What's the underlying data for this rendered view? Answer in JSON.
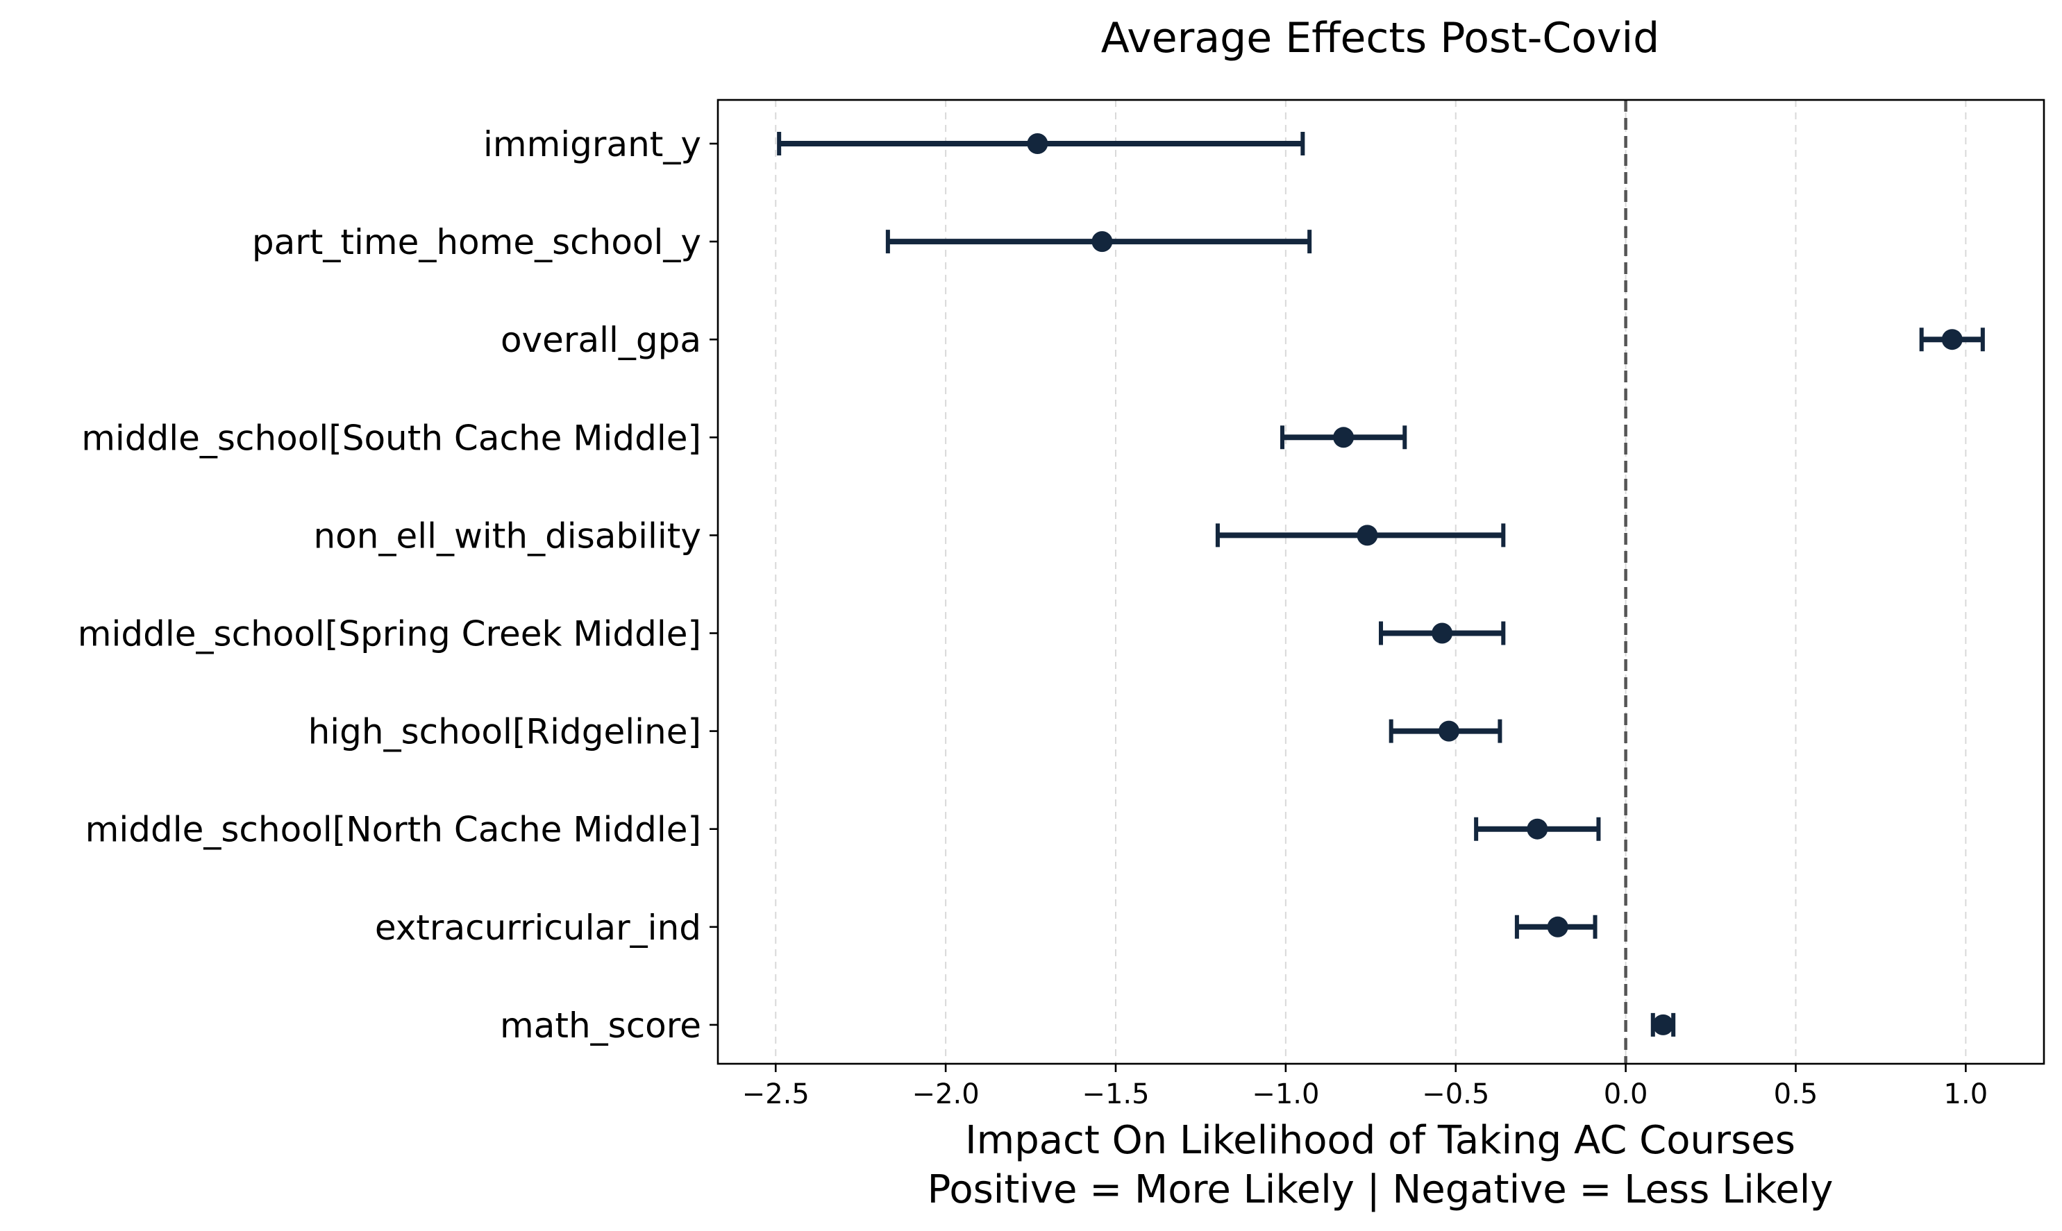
{
  "chart_data": {
    "type": "errorbar",
    "title": "Average Effects Post-Covid",
    "xlabel_line1": "Impact On Likelihood of Taking AC Courses",
    "xlabel_line2": "Positive = More Likely | Negative = Less Likely",
    "xlim": [
      -2.67,
      1.23
    ],
    "xticks": [
      -2.5,
      -2.0,
      -1.5,
      -1.0,
      -0.5,
      0.0,
      0.5,
      1.0
    ],
    "xtick_labels": [
      "−2.5",
      "−2.0",
      "−1.5",
      "−1.0",
      "−0.5",
      "0.0",
      "0.5",
      "1.0"
    ],
    "grid": "vertical dashed",
    "reference_line": 0.0,
    "point_color": "#13263d",
    "categories": [
      "immigrant_y",
      "part_time_home_school_y",
      "overall_gpa",
      "middle_school[South Cache Middle]",
      "non_ell_with_disability",
      "middle_school[Spring Creek Middle]",
      "high_school[Ridgeline]",
      "middle_school[North Cache Middle]",
      "extracurricular_ind",
      "math_score"
    ],
    "estimates": [
      -1.73,
      -1.54,
      0.96,
      -0.83,
      -0.76,
      -0.54,
      -0.52,
      -0.26,
      -0.2,
      0.11
    ],
    "lower": [
      -2.49,
      -2.17,
      0.87,
      -1.01,
      -1.2,
      -0.72,
      -0.69,
      -0.44,
      -0.32,
      0.08
    ],
    "upper": [
      -0.95,
      -0.93,
      1.05,
      -0.65,
      -0.36,
      -0.36,
      -0.37,
      -0.08,
      -0.09,
      0.14
    ]
  }
}
